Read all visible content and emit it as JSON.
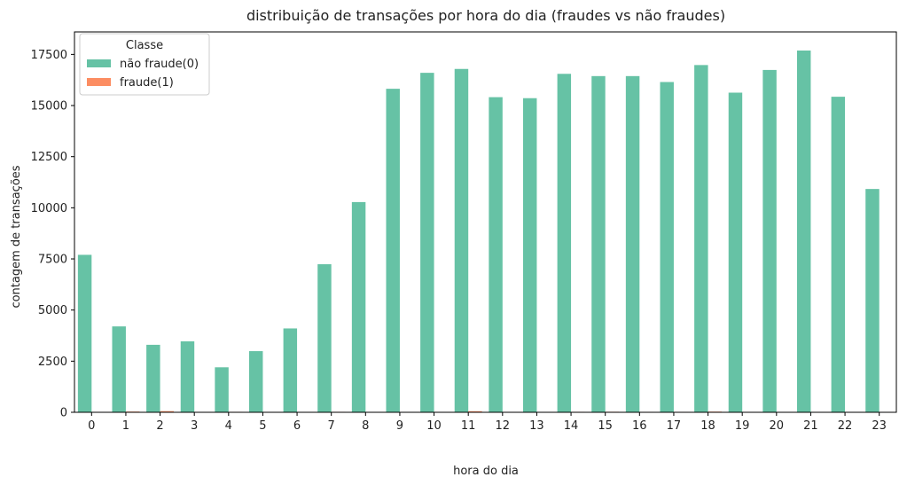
{
  "chart_data": {
    "type": "bar",
    "title": "distribuição de transações por hora do dia (fraudes vs não fraudes)",
    "xlabel": "hora do dia",
    "ylabel": "contagem de transações",
    "categories": [
      "0",
      "1",
      "2",
      "3",
      "4",
      "5",
      "6",
      "7",
      "8",
      "9",
      "10",
      "11",
      "12",
      "13",
      "14",
      "15",
      "16",
      "17",
      "18",
      "19",
      "20",
      "21",
      "22",
      "23"
    ],
    "series": [
      {
        "name": "não fraude(0)",
        "color": "#66c2a5",
        "values": [
          7700,
          4200,
          3300,
          3470,
          2200,
          2990,
          4100,
          7240,
          10280,
          15820,
          16600,
          16790,
          15410,
          15360,
          16550,
          16440,
          16440,
          16150,
          16980,
          15630,
          16740,
          17690,
          15430,
          10920
        ]
      },
      {
        "name": "fraude(1)",
        "color": "#fc8d62",
        "values": [
          6,
          35,
          57,
          17,
          23,
          11,
          9,
          23,
          9,
          16,
          8,
          53,
          17,
          17,
          23,
          26,
          22,
          22,
          33,
          19,
          18,
          16,
          9,
          21
        ]
      }
    ],
    "yticks": [
      0,
      2500,
      5000,
      7500,
      10000,
      12500,
      15000,
      17500
    ],
    "ylim": [
      0,
      18600
    ],
    "legend": {
      "title": "Classe",
      "placement": "upper-left"
    },
    "grid": false
  }
}
